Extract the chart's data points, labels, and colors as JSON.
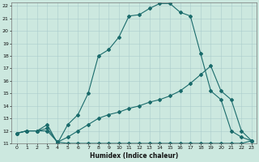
{
  "xlabel": "Humidex (Indice chaleur)",
  "xlim": [
    -0.5,
    23.5
  ],
  "ylim": [
    11,
    22.3
  ],
  "xticks": [
    0,
    1,
    2,
    3,
    4,
    5,
    6,
    7,
    8,
    9,
    10,
    11,
    12,
    13,
    14,
    15,
    16,
    17,
    18,
    19,
    20,
    21,
    22,
    23
  ],
  "yticks": [
    11,
    12,
    13,
    14,
    15,
    16,
    17,
    18,
    19,
    20,
    21,
    22
  ],
  "background_color": "#cce8df",
  "line_color": "#1a6b6b",
  "grid_color": "#aacccc",
  "line1_x": [
    0,
    1,
    2,
    3,
    4,
    5,
    6,
    7,
    8,
    9,
    10,
    11,
    12,
    13,
    14,
    15,
    16,
    17,
    18,
    19,
    20,
    21,
    22,
    23
  ],
  "line1_y": [
    11.8,
    12.0,
    12.0,
    12.5,
    11.0,
    12.5,
    13.3,
    15.0,
    18.0,
    18.5,
    19.5,
    21.2,
    21.3,
    21.8,
    22.2,
    22.2,
    21.5,
    21.2,
    18.2,
    15.2,
    14.5,
    12.0,
    11.5,
    11.2
  ],
  "line2_x": [
    0,
    1,
    2,
    3,
    4,
    5,
    6,
    7,
    8,
    9,
    10,
    11,
    12,
    13,
    14,
    15,
    16,
    17,
    18,
    19,
    20,
    21,
    22,
    23
  ],
  "line2_y": [
    11.8,
    12.0,
    12.0,
    12.2,
    11.1,
    11.5,
    12.0,
    12.5,
    13.0,
    13.3,
    13.5,
    13.8,
    14.0,
    14.3,
    14.5,
    14.8,
    15.2,
    15.8,
    16.5,
    17.2,
    15.2,
    14.5,
    12.0,
    11.2
  ],
  "line3_x": [
    0,
    1,
    2,
    3,
    4,
    5,
    6,
    7,
    8,
    9,
    10,
    11,
    12,
    13,
    14,
    15,
    16,
    17,
    18,
    19,
    20,
    21,
    22,
    23
  ],
  "line3_y": [
    11.8,
    12.0,
    12.0,
    12.0,
    11.1,
    11.0,
    11.0,
    11.0,
    11.0,
    11.0,
    11.0,
    11.0,
    11.0,
    11.0,
    11.0,
    11.0,
    11.0,
    11.0,
    11.0,
    11.0,
    11.0,
    11.0,
    11.0,
    11.2
  ]
}
